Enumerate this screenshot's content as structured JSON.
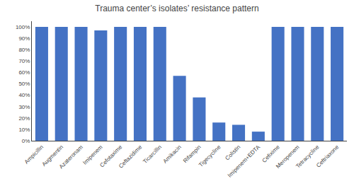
{
  "chart_data": {
    "type": "bar",
    "title": "Trauma center’s isolates’ resistance pattern",
    "categories": [
      "Ampicillin",
      "Augmentin",
      "Azateronam",
      "Imipenem",
      "Cefotaxime",
      "Ceftazidime",
      "Ticarcillin",
      "Amikacin",
      "Rifampin",
      "Tigecycline",
      "Colistin",
      "Imipenem+EDTA",
      "Cefixime",
      "Meropenem",
      "Tetracycline",
      "Ceftriaxone"
    ],
    "values": [
      100,
      100,
      100,
      97,
      100,
      100,
      100,
      57,
      38,
      16,
      14,
      8,
      100,
      100,
      100,
      100
    ],
    "color": "#4472C4",
    "ylim": [
      0,
      105
    ],
    "yticks": [
      {
        "value": 0,
        "label": "0%"
      },
      {
        "value": 10,
        "label": "10%"
      },
      {
        "value": 20,
        "label": "20%"
      },
      {
        "value": 30,
        "label": "30%"
      },
      {
        "value": 40,
        "label": "40%"
      },
      {
        "value": 50,
        "label": "50%"
      },
      {
        "value": 60,
        "label": "60%"
      },
      {
        "value": 70,
        "label": "70%"
      },
      {
        "value": 80,
        "label": "80%"
      },
      {
        "value": 90,
        "label": "90%"
      },
      {
        "value": 100,
        "label": "100%"
      }
    ],
    "grid": false
  }
}
